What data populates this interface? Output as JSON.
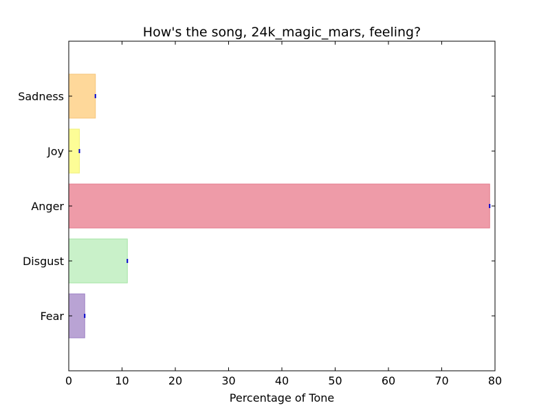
{
  "chart_data": {
    "type": "bar",
    "orientation": "horizontal",
    "title": "How's the song, 24k_magic_mars, feeling?",
    "xlabel": "Percentage of Tone",
    "ylabel": "",
    "xlim": [
      0,
      80
    ],
    "x_ticks": [
      "0",
      "10",
      "20",
      "30",
      "40",
      "50",
      "60",
      "70",
      "80"
    ],
    "categories": [
      "Fear",
      "Disgust",
      "Anger",
      "Joy",
      "Sadness"
    ],
    "values": [
      3,
      11,
      79,
      2,
      5
    ],
    "colors": [
      "#b9a3d4",
      "#c9f1c9",
      "#ee9ba8",
      "#fdfd96",
      "#fed89a"
    ],
    "edge_colors": [
      "#9b7fc4",
      "#a4e4a4",
      "#e27a8b",
      "#f0f07a",
      "#f5c57a"
    ],
    "grid": false,
    "legend": "none"
  }
}
